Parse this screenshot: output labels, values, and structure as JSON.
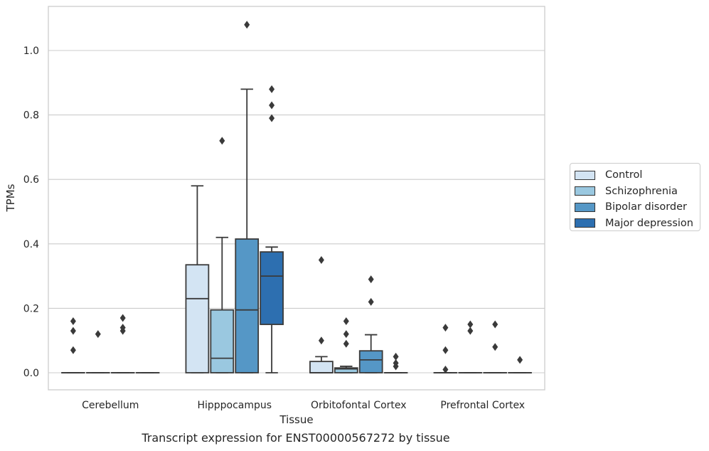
{
  "chart_data": {
    "type": "box",
    "xlabel": "Tissue",
    "ylabel": "TPMs",
    "caption": "Transcript expression for ENST00000567272 by tissue",
    "ylim": [
      -0.05,
      1.14
    ],
    "yticks": [
      0.0,
      0.2,
      0.4,
      0.6,
      0.8,
      1.0
    ],
    "ytick_labels": [
      "0.0",
      "0.2",
      "0.4",
      "0.6",
      "0.8",
      "1.0"
    ],
    "grid": "horizontal",
    "legend_position": "right",
    "categories": [
      "Cerebellum",
      "Hipppocampus",
      "Orbitofontal Cortex",
      "Prefrontal Cortex"
    ],
    "series": [
      {
        "name": "Control",
        "color": "#d3e4f3",
        "boxes": [
          {
            "q1": 0,
            "median": 0,
            "q3": 0,
            "whisker_low": 0,
            "whisker_high": 0,
            "outliers": [
              0.07,
              0.13,
              0.16
            ]
          },
          {
            "q1": 0,
            "median": 0.23,
            "q3": 0.335,
            "whisker_low": 0,
            "whisker_high": 0.58,
            "outliers": []
          },
          {
            "q1": 0,
            "median": 0,
            "q3": 0.035,
            "whisker_low": 0,
            "whisker_high": 0.05,
            "outliers": [
              0.1,
              0.35
            ]
          },
          {
            "q1": 0,
            "median": 0,
            "q3": 0,
            "whisker_low": 0,
            "whisker_high": 0,
            "outliers": [
              0.01,
              0.07,
              0.14
            ]
          }
        ]
      },
      {
        "name": "Schizophrenia",
        "color": "#9ac8e0",
        "boxes": [
          {
            "q1": 0,
            "median": 0,
            "q3": 0,
            "whisker_low": 0,
            "whisker_high": 0,
            "outliers": [
              0.12
            ]
          },
          {
            "q1": 0,
            "median": 0.045,
            "q3": 0.195,
            "whisker_low": 0,
            "whisker_high": 0.42,
            "outliers": [
              0.72
            ]
          },
          {
            "q1": 0,
            "median": 0.012,
            "q3": 0.015,
            "whisker_low": 0,
            "whisker_high": 0.02,
            "outliers": [
              0.09,
              0.12,
              0.16
            ]
          },
          {
            "q1": 0,
            "median": 0,
            "q3": 0,
            "whisker_low": 0,
            "whisker_high": 0,
            "outliers": [
              0.13,
              0.15
            ]
          }
        ]
      },
      {
        "name": "Bipolar disorder",
        "color": "#5597c6",
        "boxes": [
          {
            "q1": 0,
            "median": 0,
            "q3": 0,
            "whisker_low": 0,
            "whisker_high": 0,
            "outliers": [
              0.13,
              0.14,
              0.17
            ]
          },
          {
            "q1": 0,
            "median": 0.195,
            "q3": 0.415,
            "whisker_low": 0,
            "whisker_high": 0.88,
            "outliers": [
              1.08
            ]
          },
          {
            "q1": 0,
            "median": 0.04,
            "q3": 0.068,
            "whisker_low": 0,
            "whisker_high": 0.118,
            "outliers": [
              0.22,
              0.29
            ]
          },
          {
            "q1": 0,
            "median": 0,
            "q3": 0,
            "whisker_low": 0,
            "whisker_high": 0,
            "outliers": [
              0.08,
              0.15
            ]
          }
        ]
      },
      {
        "name": "Major depression",
        "color": "#2d6fb0",
        "boxes": [
          {
            "q1": 0,
            "median": 0,
            "q3": 0,
            "whisker_low": 0,
            "whisker_high": 0,
            "outliers": []
          },
          {
            "q1": 0.15,
            "median": 0.3,
            "q3": 0.375,
            "whisker_low": 0,
            "whisker_high": 0.39,
            "outliers": [
              0.79,
              0.83,
              0.88
            ]
          },
          {
            "q1": 0,
            "median": 0,
            "q3": 0,
            "whisker_low": 0,
            "whisker_high": 0,
            "outliers": [
              0.02,
              0.03,
              0.05
            ]
          },
          {
            "q1": 0,
            "median": 0,
            "q3": 0,
            "whisker_low": 0,
            "whisker_high": 0,
            "outliers": [
              0.04
            ]
          }
        ]
      }
    ]
  }
}
